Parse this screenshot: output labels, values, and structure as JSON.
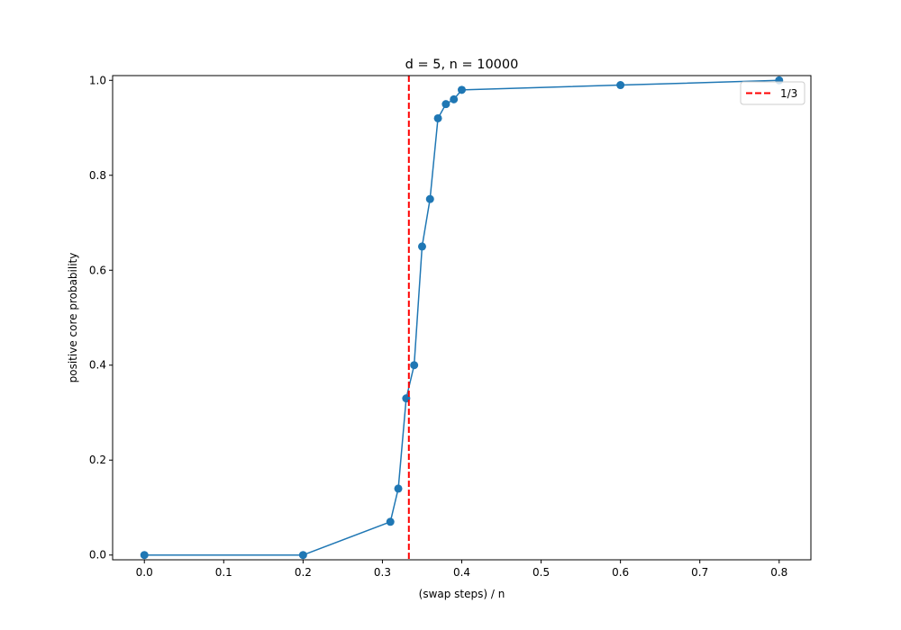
{
  "chart_data": {
    "type": "line",
    "title": "d = 5, n = 10000",
    "xlabel": "(swap steps) / n",
    "ylabel": "positive core probability",
    "xlim": [
      -0.04,
      0.84
    ],
    "ylim": [
      -0.01,
      1.01
    ],
    "xticks": [
      0.0,
      0.1,
      0.2,
      0.3,
      0.4,
      0.5,
      0.6,
      0.7,
      0.8
    ],
    "xtick_labels": [
      "0.0",
      "0.1",
      "0.2",
      "0.3",
      "0.4",
      "0.5",
      "0.6",
      "0.7",
      "0.8"
    ],
    "yticks": [
      0.0,
      0.2,
      0.4,
      0.6,
      0.8,
      1.0
    ],
    "ytick_labels": [
      "0.0",
      "0.2",
      "0.4",
      "0.6",
      "0.8",
      "1.0"
    ],
    "grid": false,
    "legend_position": "top-right",
    "series": [
      {
        "color": "#1f77b4",
        "marker": "circle",
        "x": [
          0.0,
          0.2,
          0.31,
          0.32,
          0.33,
          0.34,
          0.35,
          0.36,
          0.37,
          0.38,
          0.39,
          0.4,
          0.6,
          0.8
        ],
        "y": [
          0.0,
          0.0,
          0.07,
          0.14,
          0.33,
          0.4,
          0.65,
          0.75,
          0.92,
          0.95,
          0.96,
          0.98,
          0.99,
          1.0
        ]
      }
    ],
    "reference_lines": [
      {
        "orientation": "vertical",
        "x": 0.3333333,
        "name": "1/3",
        "color": "#ff0000",
        "style": "dashed"
      }
    ]
  }
}
